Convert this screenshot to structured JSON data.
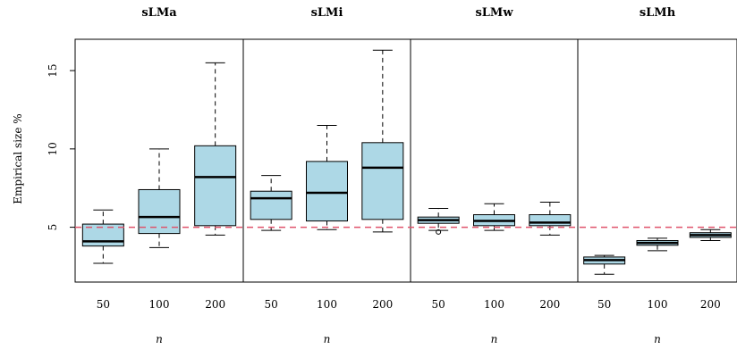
{
  "chart_data": {
    "type": "boxplot",
    "ylabel": "Empirical size %",
    "ylim": [
      1.5,
      17
    ],
    "y_ticks": [
      5,
      10,
      15
    ],
    "reference_line": {
      "y": 5,
      "style": "dashed",
      "color": "#DF536B"
    },
    "box_fill": "#ADD8E6",
    "categories": [
      "50",
      "100",
      "200"
    ],
    "panels": [
      {
        "title": "sLMa",
        "xlabel": "n",
        "boxes": [
          {
            "x": "50",
            "whisker_low": 2.7,
            "q1": 3.8,
            "median": 4.1,
            "q3": 5.2,
            "whisker_high": 6.1
          },
          {
            "x": "100",
            "whisker_low": 3.7,
            "q1": 4.6,
            "median": 5.65,
            "q3": 7.4,
            "whisker_high": 10.0
          },
          {
            "x": "200",
            "whisker_low": 4.5,
            "q1": 5.1,
            "median": 8.2,
            "q3": 10.2,
            "whisker_high": 15.5
          }
        ]
      },
      {
        "title": "sLMi",
        "xlabel": "n",
        "boxes": [
          {
            "x": "50",
            "whisker_low": 4.8,
            "q1": 5.5,
            "median": 6.85,
            "q3": 7.3,
            "whisker_high": 8.3
          },
          {
            "x": "100",
            "whisker_low": 4.85,
            "q1": 5.4,
            "median": 7.2,
            "q3": 9.2,
            "whisker_high": 11.5
          },
          {
            "x": "200",
            "whisker_low": 4.7,
            "q1": 5.5,
            "median": 8.8,
            "q3": 10.4,
            "whisker_high": 16.3
          }
        ]
      },
      {
        "title": "sLMw",
        "xlabel": "n",
        "boxes": [
          {
            "x": "50",
            "whisker_low": 4.8,
            "q1": 5.25,
            "median": 5.45,
            "q3": 5.65,
            "whisker_high": 6.2,
            "outliers": [
              4.7
            ]
          },
          {
            "x": "100",
            "whisker_low": 4.8,
            "q1": 5.1,
            "median": 5.4,
            "q3": 5.8,
            "whisker_high": 6.5
          },
          {
            "x": "200",
            "whisker_low": 4.5,
            "q1": 5.1,
            "median": 5.3,
            "q3": 5.8,
            "whisker_high": 6.6
          }
        ]
      },
      {
        "title": "sLMh",
        "xlabel": "n",
        "boxes": [
          {
            "x": "50",
            "whisker_low": 2.0,
            "q1": 2.65,
            "median": 2.9,
            "q3": 3.1,
            "whisker_high": 3.2
          },
          {
            "x": "100",
            "whisker_low": 3.5,
            "q1": 3.85,
            "median": 4.0,
            "q3": 4.15,
            "whisker_high": 4.3
          },
          {
            "x": "200",
            "whisker_low": 4.15,
            "q1": 4.35,
            "median": 4.5,
            "q3": 4.65,
            "whisker_high": 4.85
          }
        ]
      }
    ]
  }
}
